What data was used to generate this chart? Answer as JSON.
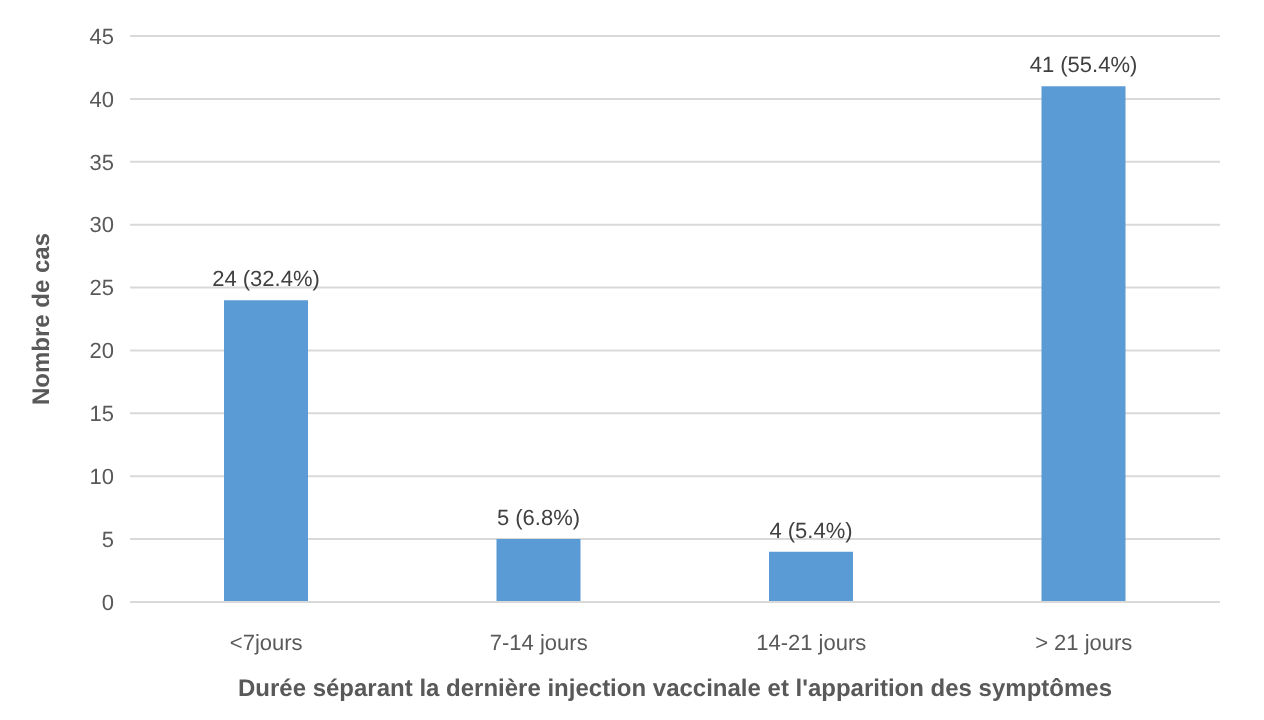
{
  "chart_data": {
    "type": "bar",
    "xlabel": "Durée séparant la dernière injection vaccinale et l'apparition des symptômes",
    "ylabel": "Nombre de cas",
    "categories": [
      "<7jours",
      "7-14 jours",
      "14-21 jours",
      "> 21 jours"
    ],
    "values": [
      24,
      5,
      4,
      41
    ],
    "value_labels": [
      "24 (32.4%)",
      "5 (6.8%)",
      "4 (5.4%)",
      "41 (55.4%)"
    ],
    "color": "#5b9bd5",
    "ylim": [
      0,
      45
    ],
    "yticks": [
      0,
      5,
      10,
      15,
      20,
      25,
      30,
      35,
      40,
      45
    ],
    "grid": "y"
  }
}
